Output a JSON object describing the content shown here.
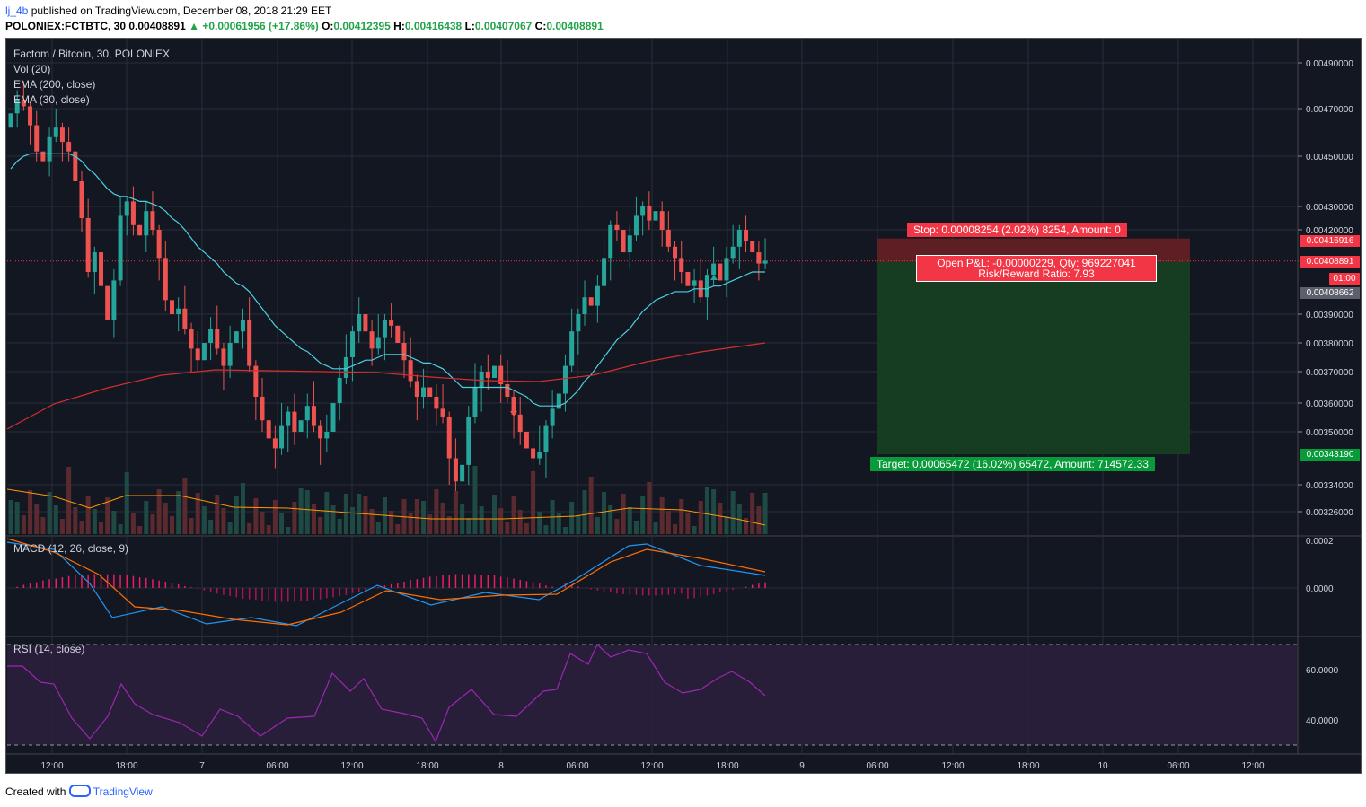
{
  "header": {
    "line1_user": "lj_4b",
    "line1_text": " published on TradingView.com, December 08, 2018 21:29 EET",
    "symbol": "POLONIEX:FCTBTC, 30",
    "last": " 0.00408891 ",
    "change": "▲ +0.00061956 (+17.86%)",
    "o_label": " O:",
    "o": "0.00412395",
    "h_label": " H:",
    "h": "0.00416438",
    "l_label": " L:",
    "l": "0.00407067",
    "c_label": " C:",
    "c": "0.00408891"
  },
  "legend": {
    "title": "Factom / Bitcoin, 30, POLONIEX",
    "vol": "Vol (20)",
    "ema200": "EMA (200, close)",
    "ema30": "EMA (30, close)",
    "macd": "MACD (12, 26, close, 9)",
    "rsi": "RSI (14, close)"
  },
  "position": {
    "stop": "Stop: 0.00008254 (2.02%) 8254, Amount: 0",
    "pnl": "Open P&L: -0.00000229, Qty: 969227041",
    "rr": "Risk/Reward Ratio: 7.93",
    "target": "Target: 0.00065472 (16.02%) 65472, Amount: 714572.33"
  },
  "price_tags": {
    "stop_price": "0.00416916",
    "last_price": "0.00408891",
    "countdown": "01:00",
    "entry_price": "0.00408662",
    "target_price": "0.00343190"
  },
  "footer": {
    "created": "Created with ",
    "brand": "TradingView"
  },
  "colors": {
    "bg": "#131722",
    "up": "#26a69a",
    "down": "#ef5350",
    "ema30": "#4dd0e1",
    "ema200": "#d32f2f",
    "vol_ma": "#ff9800",
    "macd": "#2196f3",
    "signal": "#ff6d00",
    "rsi": "#9c27b0",
    "stop_zone": "#5d1f24",
    "target_zone": "#163d22"
  },
  "chart_data": [
    {
      "type": "candlestick",
      "title": "Factom / Bitcoin, 30, POLONIEX",
      "x_ticks": [
        "12:00",
        "18:00",
        "7",
        "06:00",
        "12:00",
        "18:00",
        "8",
        "06:00",
        "12:00",
        "18:00",
        "9",
        "06:00",
        "12:00",
        "18:00",
        "10",
        "06:00",
        "12:00"
      ],
      "y_ticks": [
        "0.00490000",
        "0.00470000",
        "0.00450000",
        "0.00430000",
        "0.00420000",
        "0.00390000",
        "0.00380000",
        "0.00370000",
        "0.00360000",
        "0.00350000",
        "0.00334000",
        "0.00326000"
      ],
      "ylim": [
        0.0032,
        0.005
      ],
      "close": [
        0.00468,
        0.00474,
        0.00471,
        0.00463,
        0.00452,
        0.00448,
        0.00458,
        0.00462,
        0.00456,
        0.00452,
        0.0044,
        0.00425,
        0.00405,
        0.00412,
        0.004,
        0.00388,
        0.00402,
        0.00426,
        0.00432,
        0.00422,
        0.00418,
        0.00428,
        0.0042,
        0.0041,
        0.00395,
        0.0039,
        0.00392,
        0.00385,
        0.00378,
        0.00374,
        0.0038,
        0.00385,
        0.00378,
        0.00372,
        0.0038,
        0.00384,
        0.00388,
        0.00372,
        0.00362,
        0.00354,
        0.00348,
        0.00345,
        0.00352,
        0.00357,
        0.0035,
        0.00354,
        0.00359,
        0.00352,
        0.00348,
        0.0035,
        0.0036,
        0.00368,
        0.00375,
        0.00384,
        0.0039,
        0.00384,
        0.00378,
        0.00382,
        0.00388,
        0.00386,
        0.0038,
        0.00374,
        0.00367,
        0.00362,
        0.00365,
        0.00362,
        0.00358,
        0.00355,
        0.00342,
        0.00335,
        0.0034,
        0.00355,
        0.00365,
        0.0037,
        0.00368,
        0.00372,
        0.00366,
        0.00362,
        0.00356,
        0.0035,
        0.00345,
        0.00342,
        0.00344,
        0.00352,
        0.00358,
        0.00363,
        0.00372,
        0.00384,
        0.0039,
        0.00396,
        0.00393,
        0.004,
        0.0041,
        0.00422,
        0.0042,
        0.00412,
        0.00418,
        0.00426,
        0.0043,
        0.00424,
        0.00428,
        0.0042,
        0.00414,
        0.0041,
        0.00405,
        0.004,
        0.00402,
        0.00396,
        0.00404,
        0.00408,
        0.00402,
        0.0041,
        0.00414,
        0.0042,
        0.00416,
        0.00412,
        0.00408,
        0.00409
      ],
      "ema30": [
        0.00445,
        0.00448,
        0.0045,
        0.00451,
        0.00451,
        0.00451,
        0.00451,
        0.00451,
        0.00451,
        0.00451,
        0.0045,
        0.00448,
        0.00445,
        0.00443,
        0.0044,
        0.00437,
        0.00435,
        0.00434,
        0.00434,
        0.00433,
        0.00432,
        0.00432,
        0.00431,
        0.0043,
        0.00428,
        0.00425,
        0.00423,
        0.0042,
        0.00417,
        0.00414,
        0.00412,
        0.0041,
        0.00408,
        0.00405,
        0.00403,
        0.00401,
        0.004,
        0.00398,
        0.00395,
        0.00392,
        0.00389,
        0.00386,
        0.00384,
        0.00382,
        0.0038,
        0.00378,
        0.00377,
        0.00375,
        0.00373,
        0.00372,
        0.00371,
        0.00371,
        0.00371,
        0.00372,
        0.00373,
        0.00374,
        0.00374,
        0.00375,
        0.00376,
        0.00376,
        0.00376,
        0.00376,
        0.00375,
        0.00374,
        0.00373,
        0.00373,
        0.00372,
        0.00371,
        0.00369,
        0.00367,
        0.00365,
        0.00365,
        0.00365,
        0.00365,
        0.00365,
        0.00365,
        0.00365,
        0.00365,
        0.00364,
        0.00363,
        0.00362,
        0.0036,
        0.00359,
        0.00359,
        0.00359,
        0.00359,
        0.0036,
        0.00362,
        0.00364,
        0.00367,
        0.00369,
        0.00372,
        0.00375,
        0.00378,
        0.00381,
        0.00383,
        0.00385,
        0.00388,
        0.00391,
        0.00393,
        0.00395,
        0.00396,
        0.00397,
        0.00398,
        0.00398,
        0.00398,
        0.00399,
        0.00399,
        0.00399,
        0.004,
        0.004,
        0.00401,
        0.00402,
        0.00403,
        0.00404,
        0.00405,
        0.00405,
        0.00405
      ]
    }
  ]
}
